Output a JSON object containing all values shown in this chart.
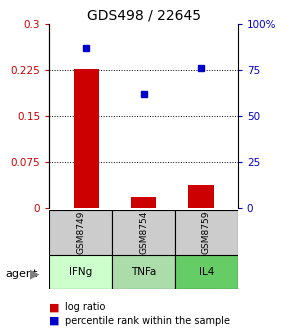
{
  "title": "GDS498 / 22645",
  "samples": [
    "GSM8749",
    "GSM8754",
    "GSM8759"
  ],
  "agents": [
    "IFNg",
    "TNFa",
    "IL4"
  ],
  "log_ratios": [
    0.226,
    0.018,
    0.038
  ],
  "percentile_ranks": [
    87,
    62,
    76
  ],
  "ylim_left": [
    0,
    0.3
  ],
  "ylim_right": [
    0,
    100
  ],
  "yticks_left": [
    0,
    0.075,
    0.15,
    0.225,
    0.3
  ],
  "yticks_right": [
    0,
    25,
    50,
    75,
    100
  ],
  "bar_color": "#cc0000",
  "dot_color": "#0000cc",
  "agent_colors": [
    "#ccffcc",
    "#aaddaa",
    "#66cc66"
  ],
  "sample_bg": "#cccccc",
  "title_fontsize": 10
}
